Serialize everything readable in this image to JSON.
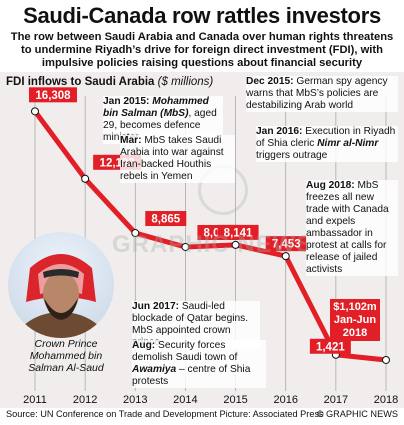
{
  "header": {
    "title": "Saudi-Canada row rattles investors",
    "subtitle": "The row between Saudi Arabia and Canada over human rights threatens to undermine Riyadh’s drive for foreign direct investment (FDI), with impulsive policies raising questions about financial security"
  },
  "chart_title": {
    "main": "FDI inflows to Saudi Arabia",
    "unit": "($ millions)"
  },
  "annotations": {
    "jan2015_date": "Jan 2015:",
    "jan2015_name": "Mohammed bin Salman (MbS)",
    "jan2015_text": ", aged 29, becomes defence minister",
    "mar_date": "Mar:",
    "mar_text": " MbS takes Saudi Arabia into war against Iran-backed Houthis rebels in Yemen",
    "dec2015_date": "Dec 2015:",
    "dec2015_text": " German spy agency warns that MbS’s policies are destabilizing Arab world",
    "jan2016_date": "Jan 2016:",
    "jan2016_text": " Execution in Riyadh of Shia cleric ",
    "jan2016_name": "Nimr al-Nimr",
    "jan2016_text2": " triggers outrage",
    "aug2018_date": "Aug 2018:",
    "aug2018_text": " MbS freezes all new trade with Canada and expels ambassador in protest at calls for release of jailed activists",
    "jun2017_date": "Jun 2017:",
    "jun2017_text": " Saudi-led blockade of Qatar begins. MbS appointed crown prince",
    "aug_date": "Aug:",
    "aug_text": " Security forces demolish Saudi town of ",
    "aug_name": "Awamiya",
    "aug_text2": " – centre of Shia protests"
  },
  "latest": {
    "value": "$1,102m",
    "period": "Jan-Jun 2018"
  },
  "caption": "Crown Prince Mohammed bin Salman Al-Saud",
  "watermark": "GRAPHIC NEWS",
  "footer": {
    "source": "Source: UN Conference on Trade and Development   Picture: Associated Press",
    "credit": "© GRAPHIC NEWS"
  },
  "colors": {
    "line": "#e21f26",
    "panel": "#f1eded",
    "grid": "#a9a9a9"
  },
  "chart_data": {
    "type": "line",
    "x": [
      "2011",
      "2012",
      "2013",
      "2014",
      "2015",
      "2016",
      "2017",
      "2018"
    ],
    "values": [
      16308,
      12182,
      8865,
      8012,
      8141,
      7453,
      1421,
      1102
    ],
    "value_labels": [
      "16,308",
      "12,182",
      "8,865",
      "8,012",
      "8,141",
      "7,453",
      "1,421",
      ""
    ],
    "ylim": [
      0,
      17000
    ],
    "grid": "vertical",
    "title": "FDI inflows to Saudi Arabia",
    "ylabel": "($ millions)"
  }
}
